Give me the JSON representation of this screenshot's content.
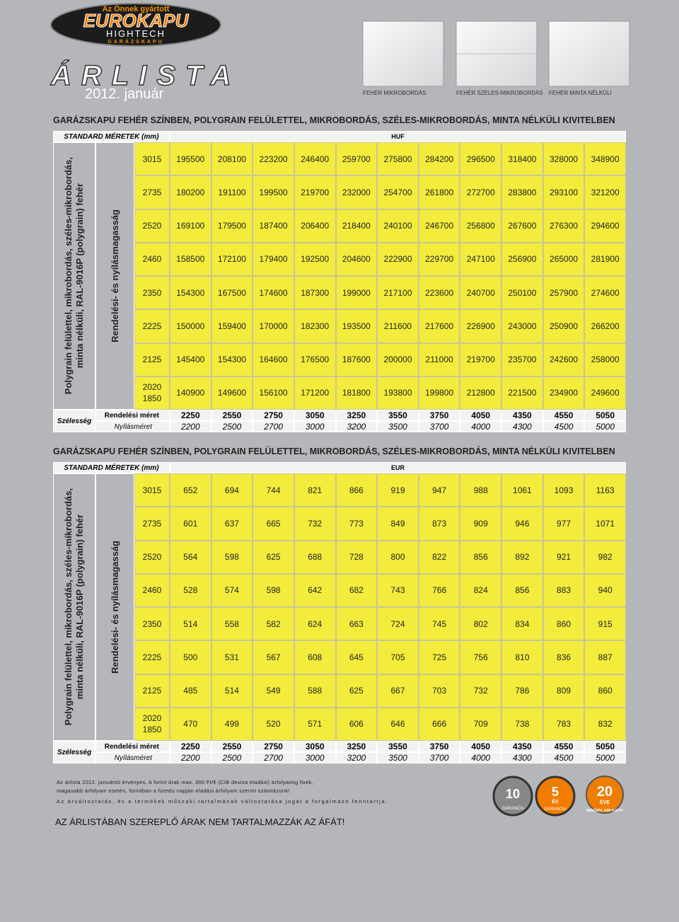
{
  "header": {
    "logo_top": "Az Önnek gyártott",
    "logo_brand": "EUROKAPU",
    "logo_sub": "HIGHTECH",
    "logo_sub2": "GARÁZSKAPU",
    "title": "ÁRLISTA",
    "date": "2012. január"
  },
  "samples": [
    "FEHÉR MIKROBORDÁS",
    "FEHÉR SZÉLES-MIKROBORDÁS",
    "FEHÉR MINTA NÉLKÜLI"
  ],
  "tables": [
    {
      "title": "GARÁZSKAPU FEHÉR SZÍNBEN, POLYGRAIN FELÜLETTEL, MIKROBORDÁS, SZÉLES-MIKROBORDÁS, MINTA NÉLKÜLI KIVITELBEN",
      "standard_label": "STANDARD MÉRETEK (mm)",
      "currency": "HUF",
      "side_label": [
        "Polygrain felülettel, mikrobordás, széles-mikrobordás,",
        "minta nélküli, RAL-9016P (polygrain) fehér"
      ],
      "height_label": "Rendelési- és nyílásmagasság",
      "rows": [
        {
          "heights": [
            3015
          ],
          "prices": [
            195500,
            208100,
            223200,
            246400,
            259700,
            275800,
            284200,
            296500,
            318400,
            328000,
            348900
          ]
        },
        {
          "heights": [
            2735
          ],
          "prices": [
            180200,
            191100,
            199500,
            219700,
            232000,
            254700,
            261800,
            272700,
            283800,
            293100,
            321200
          ]
        },
        {
          "heights": [
            2520
          ],
          "prices": [
            169100,
            179500,
            187400,
            206400,
            218400,
            240100,
            246700,
            256800,
            267600,
            276300,
            294600
          ]
        },
        {
          "heights": [
            2460
          ],
          "prices": [
            158500,
            172100,
            179400,
            192500,
            204600,
            222900,
            229700,
            247100,
            256900,
            265000,
            281900
          ]
        },
        {
          "heights": [
            2350
          ],
          "prices": [
            154300,
            167500,
            174600,
            187300,
            199000,
            217100,
            223600,
            240700,
            250100,
            257900,
            274600
          ]
        },
        {
          "heights": [
            2225
          ],
          "prices": [
            150000,
            159400,
            170000,
            182300,
            193500,
            211600,
            217600,
            226900,
            243000,
            250900,
            266200
          ]
        },
        {
          "heights": [
            2125
          ],
          "prices": [
            145400,
            154300,
            164600,
            176500,
            187600,
            200000,
            211000,
            219700,
            235700,
            242600,
            258000
          ]
        },
        {
          "heights": [
            2020,
            1850
          ],
          "prices": [
            140900,
            149600,
            156100,
            171200,
            181800,
            193800,
            199800,
            212800,
            221500,
            234900,
            249600
          ]
        }
      ],
      "width_label": "Szélesség",
      "order_label": "Rendelési méret",
      "opening_label": "Nyílásméret",
      "order_sizes": [
        2250,
        2550,
        2750,
        3050,
        3250,
        3550,
        3750,
        4050,
        4350,
        4550,
        5050
      ],
      "opening_sizes": [
        2200,
        2500,
        2700,
        3000,
        3200,
        3500,
        3700,
        4000,
        4300,
        4500,
        5000
      ]
    },
    {
      "title": "GARÁZSKAPU FEHÉR SZÍNBEN, POLYGRAIN FELÜLETTEL, MIKROBORDÁS, SZÉLES-MIKROBORDÁS, MINTA NÉLKÜLI KIVITELBEN",
      "standard_label": "STANDARD MÉRETEK (mm)",
      "currency": "EUR",
      "side_label": [
        "Polygrain felülettel, mikrobordás, széles-mikrobordás,",
        "minta nélküli, RAL-9016P (polygrain) fehér"
      ],
      "height_label": "Rendelési- és nyílásmagasság",
      "rows": [
        {
          "heights": [
            3015
          ],
          "prices": [
            652,
            694,
            744,
            821,
            866,
            919,
            947,
            988,
            1061,
            1093,
            1163
          ]
        },
        {
          "heights": [
            2735
          ],
          "prices": [
            601,
            637,
            665,
            732,
            773,
            849,
            873,
            909,
            946,
            977,
            1071
          ]
        },
        {
          "heights": [
            2520
          ],
          "prices": [
            564,
            598,
            625,
            688,
            728,
            800,
            822,
            856,
            892,
            921,
            982
          ]
        },
        {
          "heights": [
            2460
          ],
          "prices": [
            528,
            574,
            598,
            642,
            682,
            743,
            766,
            824,
            856,
            883,
            940
          ]
        },
        {
          "heights": [
            2350
          ],
          "prices": [
            514,
            558,
            582,
            624,
            663,
            724,
            745,
            802,
            834,
            860,
            915
          ]
        },
        {
          "heights": [
            2225
          ],
          "prices": [
            500,
            531,
            567,
            608,
            645,
            705,
            725,
            756,
            810,
            836,
            887
          ]
        },
        {
          "heights": [
            2125
          ],
          "prices": [
            485,
            514,
            549,
            588,
            625,
            667,
            703,
            732,
            786,
            809,
            860
          ]
        },
        {
          "heights": [
            2020,
            1850
          ],
          "prices": [
            470,
            499,
            520,
            571,
            606,
            646,
            666,
            709,
            738,
            783,
            832
          ]
        }
      ],
      "width_label": "Szélesség",
      "order_label": "Rendelési méret",
      "opening_label": "Nyílásméret",
      "order_sizes": [
        2250,
        2550,
        2750,
        3050,
        3250,
        3550,
        3750,
        4050,
        4350,
        4550,
        5050
      ],
      "opening_sizes": [
        2200,
        2500,
        2700,
        3000,
        3200,
        3500,
        3700,
        4000,
        4300,
        4500,
        5000
      ]
    }
  ],
  "footer": {
    "notes": [
      "Az árlista 2012. januártól érvényes. A forint árak max. 300 Ft/€ (CIB deviza eladási) árfolyamig fixek,",
      "magasabb árfolyam esetén, forintban a fizetés napján eladási árfolyam szerint számlázunk!",
      "Az árváltoztatás, és a termékek műszaki tartalmának változtatása jogát a forgalmazó fenntartja."
    ],
    "vat_note": "AZ ÁRLISTÁBAN SZEREPLŐ ÁRAK NEM TARTALMAZZÁK AZ ÁFÁT!",
    "badges": [
      [
        "10",
        "GARANCIA"
      ],
      [
        "5",
        "ÉV",
        "GARANCIA"
      ],
      [
        "20",
        "ÉVE",
        "MINDEN, AMI KAPU"
      ]
    ]
  }
}
